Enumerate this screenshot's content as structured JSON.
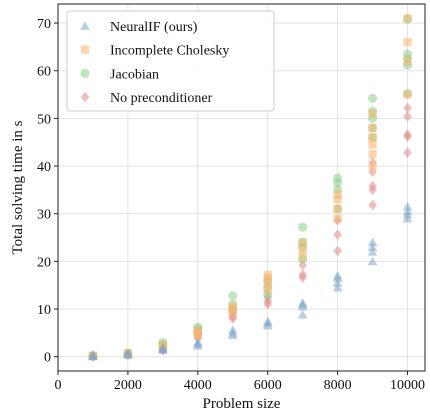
{
  "chart_data": {
    "type": "scatter",
    "title": "",
    "xlabel": "Problem size",
    "ylabel": "Total solving time in s",
    "xlim": [
      0,
      10500
    ],
    "ylim": [
      -3,
      74
    ],
    "xticks": [
      0,
      2000,
      4000,
      6000,
      8000,
      10000
    ],
    "yticks": [
      0,
      10,
      20,
      30,
      40,
      50,
      60,
      70
    ],
    "grid": true,
    "legend_position": "top-left",
    "series": [
      {
        "name": "NeuralIF (ours)",
        "marker": "triangle",
        "color": "#7fa8c9",
        "points": [
          [
            1000,
            0.1
          ],
          [
            1000,
            0.2
          ],
          [
            1000,
            0.3
          ],
          [
            2000,
            0.4
          ],
          [
            2000,
            0.6
          ],
          [
            2000,
            0.7
          ],
          [
            3000,
            1.4
          ],
          [
            3000,
            1.6
          ],
          [
            3000,
            1.9
          ],
          [
            4000,
            2.3
          ],
          [
            4000,
            2.7
          ],
          [
            4000,
            3.0
          ],
          [
            5000,
            4.5
          ],
          [
            5000,
            5.0
          ],
          [
            5000,
            5.6
          ],
          [
            6000,
            6.5
          ],
          [
            6000,
            7.0
          ],
          [
            6000,
            7.4
          ],
          [
            7000,
            8.8
          ],
          [
            7000,
            10.5
          ],
          [
            7000,
            11.0
          ],
          [
            7000,
            11.3
          ],
          [
            8000,
            14.5
          ],
          [
            8000,
            15.5
          ],
          [
            8000,
            16.5
          ],
          [
            8000,
            17.0
          ],
          [
            9000,
            20.0
          ],
          [
            9000,
            22.0
          ],
          [
            9000,
            23.0
          ],
          [
            9000,
            24.0
          ],
          [
            10000,
            29.0
          ],
          [
            10000,
            29.8
          ],
          [
            10000,
            30.5
          ],
          [
            10000,
            31.5
          ]
        ]
      },
      {
        "name": "Incomplete Cholesky",
        "marker": "square",
        "color": "#f7b36b",
        "points": [
          [
            1000,
            0.1
          ],
          [
            1000,
            0.2
          ],
          [
            2000,
            0.5
          ],
          [
            2000,
            0.8
          ],
          [
            3000,
            2.0
          ],
          [
            3000,
            2.5
          ],
          [
            4000,
            4.5
          ],
          [
            4000,
            5.0
          ],
          [
            4000,
            5.5
          ],
          [
            5000,
            9.0
          ],
          [
            5000,
            10.0
          ],
          [
            5000,
            10.5
          ],
          [
            6000,
            14.0
          ],
          [
            6000,
            15.5
          ],
          [
            6000,
            16.5
          ],
          [
            6000,
            17.2
          ],
          [
            7000,
            21.0
          ],
          [
            7000,
            22.5
          ],
          [
            7000,
            24.0
          ],
          [
            8000,
            29.0
          ],
          [
            8000,
            31.0
          ],
          [
            8000,
            33.0
          ],
          [
            8000,
            34.0
          ],
          [
            9000,
            40.0
          ],
          [
            9000,
            42.5
          ],
          [
            9000,
            44.5
          ],
          [
            9000,
            46.0
          ],
          [
            9000,
            48.0
          ],
          [
            9000,
            51.0
          ],
          [
            10000,
            55.0
          ],
          [
            10000,
            62.0
          ],
          [
            10000,
            66.0
          ],
          [
            10000,
            71.0
          ]
        ]
      },
      {
        "name": "Jacobian",
        "marker": "circle",
        "color": "#8dcf8a",
        "points": [
          [
            1000,
            0.1
          ],
          [
            1000,
            0.2
          ],
          [
            2000,
            0.5
          ],
          [
            2000,
            0.7
          ],
          [
            3000,
            2.5
          ],
          [
            3000,
            3.0
          ],
          [
            4000,
            5.0
          ],
          [
            4000,
            5.8
          ],
          [
            4000,
            6.2
          ],
          [
            5000,
            10.0
          ],
          [
            5000,
            11.0
          ],
          [
            5000,
            12.8
          ],
          [
            6000,
            13.0
          ],
          [
            6000,
            14.5
          ],
          [
            6000,
            15.8
          ],
          [
            7000,
            20.5
          ],
          [
            7000,
            23.0
          ],
          [
            7000,
            24.0
          ],
          [
            7000,
            27.2
          ],
          [
            8000,
            31.0
          ],
          [
            8000,
            35.0
          ],
          [
            8000,
            36.5
          ],
          [
            8000,
            37.5
          ],
          [
            9000,
            46.0
          ],
          [
            9000,
            48.0
          ],
          [
            9000,
            50.0
          ],
          [
            9000,
            51.5
          ],
          [
            9000,
            54.2
          ],
          [
            10000,
            55.2
          ],
          [
            10000,
            61.2
          ],
          [
            10000,
            62.5
          ],
          [
            10000,
            63.5
          ],
          [
            10000,
            70.8
          ]
        ]
      },
      {
        "name": "No preconditioner",
        "marker": "diamond",
        "color": "#e08a8a",
        "points": [
          [
            1000,
            0.05
          ],
          [
            1000,
            0.15
          ],
          [
            1000,
            0.25
          ],
          [
            2000,
            0.3
          ],
          [
            2000,
            0.5
          ],
          [
            2000,
            0.6
          ],
          [
            3000,
            1.3
          ],
          [
            3000,
            1.6
          ],
          [
            3000,
            1.9
          ],
          [
            4000,
            3.8
          ],
          [
            4000,
            4.5
          ],
          [
            4000,
            5.0
          ],
          [
            5000,
            8.0
          ],
          [
            5000,
            8.5
          ],
          [
            5000,
            9.2
          ],
          [
            6000,
            11.0
          ],
          [
            6000,
            11.6
          ],
          [
            6000,
            12.5
          ],
          [
            7000,
            16.6
          ],
          [
            7000,
            17.2
          ],
          [
            7000,
            19.2
          ],
          [
            8000,
            22.2
          ],
          [
            8000,
            25.6
          ],
          [
            8000,
            28.6
          ],
          [
            9000,
            31.8
          ],
          [
            9000,
            35.0
          ],
          [
            9000,
            35.8
          ],
          [
            9000,
            38.8
          ],
          [
            9000,
            40.8
          ],
          [
            10000,
            42.8
          ],
          [
            10000,
            46.2
          ],
          [
            10000,
            46.6
          ],
          [
            10000,
            50.4
          ],
          [
            10000,
            52.2
          ]
        ]
      }
    ]
  }
}
